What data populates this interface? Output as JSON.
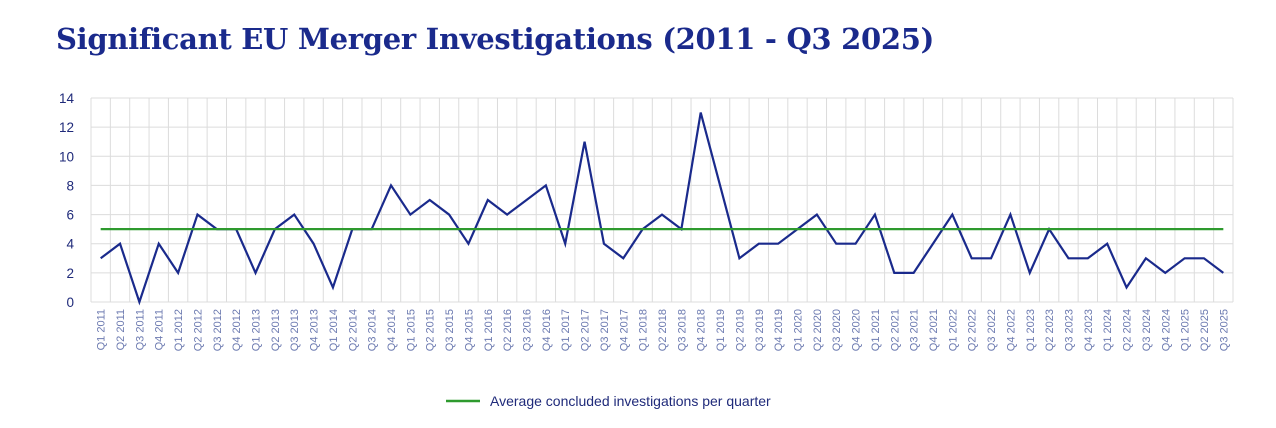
{
  "title": "Significant EU Merger Investigations (2011 - Q3 2025)",
  "chart_data": {
    "type": "line",
    "title": "Significant EU Merger Investigations (2011 - Q3 2025)",
    "xlabel": "",
    "ylabel": "",
    "ylim": [
      0,
      14
    ],
    "yticks": [
      0,
      2,
      4,
      6,
      8,
      10,
      12,
      14
    ],
    "grid": true,
    "legend_placement": "bottom-center",
    "categories": [
      "Q1 2011",
      "Q2 2011",
      "Q3 2011",
      "Q4 2011",
      "Q1 2012",
      "Q2 2012",
      "Q3 2012",
      "Q4 2012",
      "Q1 2013",
      "Q2 2013",
      "Q3 2013",
      "Q4 2013",
      "Q1 2014",
      "Q2 2014",
      "Q3 2014",
      "Q4 2014",
      "Q1 2015",
      "Q2 2015",
      "Q3 2015",
      "Q4 2015",
      "Q1 2016",
      "Q2 2016",
      "Q3 2016",
      "Q4 2016",
      "Q1 2017",
      "Q2 2017",
      "Q3 2017",
      "Q4 2017",
      "Q1 2018",
      "Q2 2018",
      "Q3 2018",
      "Q4 2018",
      "Q1 2019",
      "Q2 2019",
      "Q3 2019",
      "Q4 2019",
      "Q1 2020",
      "Q2 2020",
      "Q3 2020",
      "Q4 2020",
      "Q1 2021",
      "Q2 2021",
      "Q3 2021",
      "Q4 2021",
      "Q1 2022",
      "Q2 2022",
      "Q3 2022",
      "Q4 2022",
      "Q1 2023",
      "Q2 2023",
      "Q3 2023",
      "Q4 2023",
      "Q1 2024",
      "Q2 2024",
      "Q3 2024",
      "Q4 2024",
      "Q1 2025",
      "Q2 2025",
      "Q3 2025"
    ],
    "series": [
      {
        "name": "",
        "color": "#1a2a8c",
        "values": [
          3,
          4,
          0,
          4,
          2,
          6,
          5,
          5,
          2,
          5,
          6,
          4,
          1,
          5,
          5,
          8,
          6,
          7,
          6,
          4,
          7,
          6,
          7,
          8,
          4,
          11,
          4,
          3,
          5,
          6,
          5,
          13,
          8,
          3,
          4,
          4,
          5,
          6,
          4,
          4,
          6,
          2,
          2,
          4,
          6,
          3,
          3,
          6,
          2,
          5,
          3,
          3,
          4,
          1,
          3,
          2,
          3,
          3,
          2
        ]
      },
      {
        "name": "Average concluded investigations per quarter",
        "color": "#2e9a2e",
        "constant": 5
      }
    ]
  }
}
